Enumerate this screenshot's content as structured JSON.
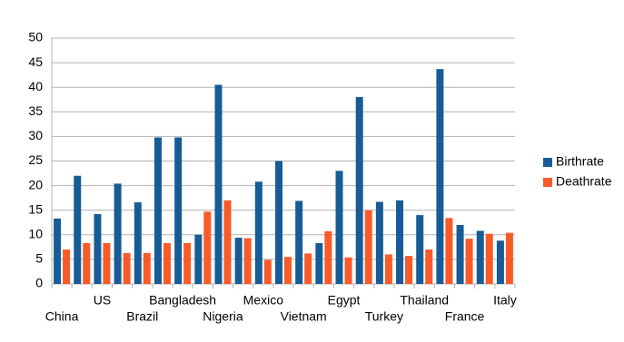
{
  "chart_data": {
    "type": "bar",
    "categories": [
      "China",
      null,
      "US",
      null,
      "Brazil",
      null,
      "Bangladesh",
      null,
      "Nigeria",
      null,
      "Mexico",
      null,
      "Vietnam",
      null,
      "Egypt",
      null,
      "Turkey",
      null,
      "Thailand",
      null,
      "France",
      null,
      "Italy"
    ],
    "series": [
      {
        "name": "Birthrate",
        "color": "#175c96",
        "values": [
          13.3,
          22,
          14.2,
          20.4,
          16.6,
          29.8,
          29.8,
          10,
          40.5,
          9.4,
          20.8,
          25,
          16.9,
          8.3,
          23,
          38,
          16.7,
          17,
          14,
          43.7,
          12,
          10.8,
          8.8
        ]
      },
      {
        "name": "Deathrate",
        "color": "#f95b28",
        "values": [
          7,
          8.3,
          8.3,
          6.3,
          6.3,
          8.3,
          8.3,
          14.7,
          17,
          9.3,
          4.9,
          5.5,
          6.2,
          10.7,
          5.4,
          15,
          6,
          5.7,
          7,
          13.4,
          9.2,
          10.2,
          10.4
        ]
      }
    ],
    "ylim": [
      0,
      50
    ],
    "yticks": [
      0,
      5,
      10,
      15,
      20,
      25,
      30,
      35,
      40,
      45,
      50
    ],
    "grid": true,
    "legend": "right"
  }
}
